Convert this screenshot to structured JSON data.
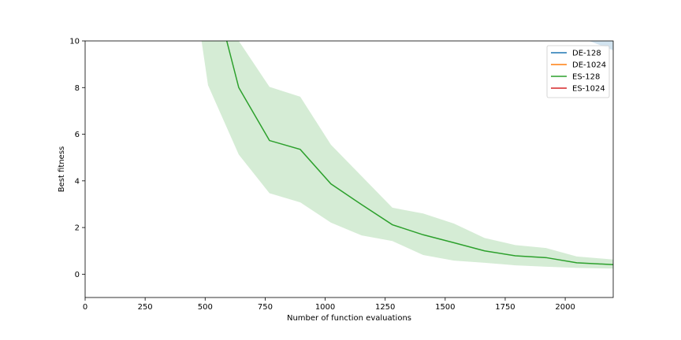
{
  "chart_data": {
    "type": "line",
    "title": "",
    "xlabel": "Number of function evaluations",
    "ylabel": "Best fitness",
    "xlim": [
      0,
      2200
    ],
    "ylim": [
      -1,
      10
    ],
    "xticks": [
      0,
      250,
      500,
      750,
      1000,
      1250,
      1500,
      1750,
      2000
    ],
    "yticks": [
      0,
      2,
      4,
      6,
      8,
      10
    ],
    "grid": false,
    "legend_position": "top-right",
    "series": [
      {
        "name": "DE-128",
        "color": "#1f77b4",
        "x": [
          2100,
          2200
        ],
        "y": [
          10.1,
          10.1
        ],
        "band_x": [
          2100,
          2150,
          2200
        ],
        "band_lower": [
          10.0,
          9.8,
          9.6
        ],
        "band_upper": [
          10.2,
          10.2,
          10.2
        ]
      },
      {
        "name": "DE-1024",
        "color": "#ff7f0e",
        "x": [],
        "y": []
      },
      {
        "name": "ES-128",
        "color": "#2ca02c",
        "x": [
          590,
          640,
          768,
          896,
          1024,
          1152,
          1280,
          1408,
          1536,
          1664,
          1792,
          1920,
          2048,
          2200
        ],
        "y": [
          10.0,
          8.0,
          5.73,
          5.35,
          3.87,
          2.98,
          2.12,
          1.69,
          1.35,
          1.0,
          0.79,
          0.71,
          0.49,
          0.41
        ],
        "band_x": [
          485,
          512,
          640,
          768,
          896,
          1024,
          1152,
          1280,
          1408,
          1536,
          1664,
          1792,
          1920,
          2048,
          2200
        ],
        "band_lower": [
          10.0,
          8.1,
          5.13,
          3.47,
          3.08,
          2.21,
          1.66,
          1.42,
          0.82,
          0.58,
          0.49,
          0.38,
          0.32,
          0.27,
          0.24
        ],
        "band_upper": [
          10.0,
          10.0,
          10.0,
          8.03,
          7.61,
          5.55,
          4.2,
          2.85,
          2.6,
          2.17,
          1.55,
          1.25,
          1.12,
          0.76,
          0.63
        ]
      },
      {
        "name": "ES-1024",
        "color": "#d62728",
        "x": [],
        "y": []
      }
    ]
  }
}
